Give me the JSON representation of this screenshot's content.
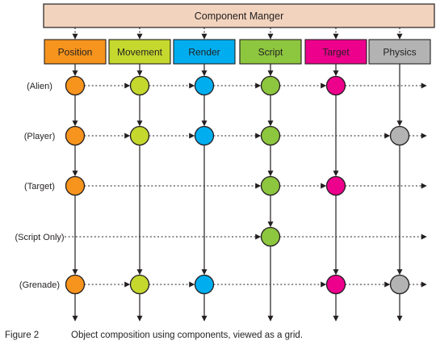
{
  "manager": {
    "label": "Component Manger"
  },
  "columns": [
    {
      "label": "Position",
      "color": "#f7941d"
    },
    {
      "label": "Movement",
      "color": "#c4d82e"
    },
    {
      "label": "Render",
      "color": "#00aeef"
    },
    {
      "label": "Script",
      "color": "#8dc63f"
    },
    {
      "label": "Target",
      "color": "#ec008c"
    },
    {
      "label": "Physics",
      "color": "#b3b3b3"
    }
  ],
  "rows": [
    {
      "label": "(Alien)",
      "components": [
        1,
        1,
        1,
        1,
        1,
        0
      ]
    },
    {
      "label": "(Player)",
      "components": [
        1,
        1,
        1,
        1,
        0,
        1
      ]
    },
    {
      "label": "(Target)",
      "components": [
        1,
        0,
        0,
        1,
        1,
        0
      ]
    },
    {
      "label": "(Script Only)",
      "components": [
        0,
        0,
        0,
        1,
        0,
        0
      ]
    },
    {
      "label": "(Grenade)",
      "components": [
        1,
        1,
        1,
        0,
        1,
        1
      ]
    }
  ],
  "caption": {
    "figure": "Figure 2",
    "text": "Object composition using components, viewed as a grid."
  },
  "colors": {
    "manager_fill": "#f2d3bd",
    "stroke": "#231f20"
  }
}
